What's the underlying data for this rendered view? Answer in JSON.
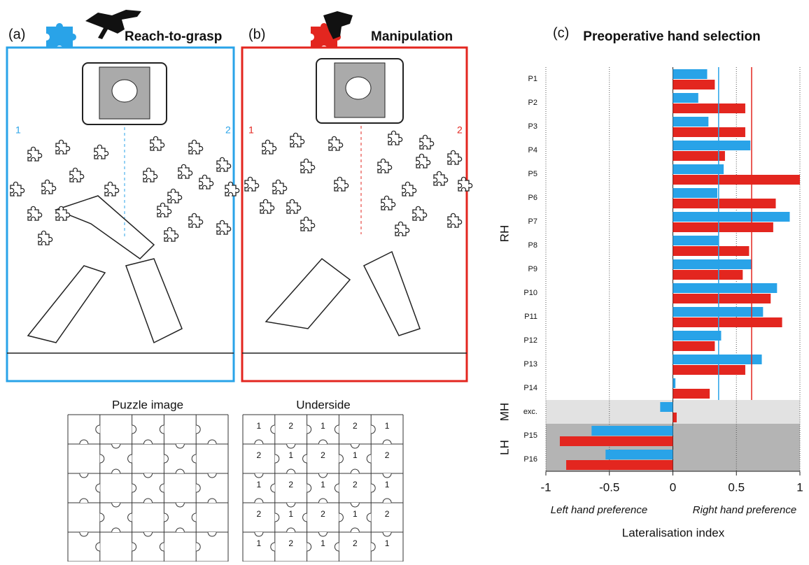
{
  "panels": {
    "a": {
      "label": "(a)",
      "left": "1",
      "right": "2"
    },
    "b": {
      "label": "(b)",
      "left": "1",
      "right": "2"
    }
  },
  "puzzle": {
    "image_title": "Puzzle image",
    "underside_title": "Underside",
    "underside_numbers": [
      [
        "1",
        "2",
        "1",
        "2",
        "1"
      ],
      [
        "2",
        "1",
        "2",
        "1",
        "2"
      ],
      [
        "1",
        "2",
        "1",
        "2",
        "1"
      ],
      [
        "2",
        "1",
        "2",
        "1",
        "2"
      ],
      [
        "1",
        "2",
        "1",
        "2",
        "1"
      ]
    ]
  },
  "chart_data": {
    "type": "bar",
    "orientation": "horizontal",
    "panel_label": "(c)",
    "title": "Preoperative hand selection",
    "categories": [
      "P1",
      "P2",
      "P3",
      "P4",
      "P5",
      "P6",
      "P7",
      "P8",
      "P9",
      "P10",
      "P11",
      "P12",
      "P13",
      "P14",
      "exc.",
      "P15",
      "P16"
    ],
    "groups": [
      {
        "label": "RH",
        "count": 14,
        "color": "#ffffff"
      },
      {
        "label": "MH",
        "count": 1,
        "color": "#e2e2e2"
      },
      {
        "label": "LH",
        "count": 2,
        "color": "#b4b4b4"
      }
    ],
    "series": [
      {
        "name": "Reach-to-grasp",
        "color": "#29a3e8",
        "mean": 0.36,
        "values": [
          0.27,
          0.2,
          0.28,
          0.61,
          0.4,
          0.35,
          0.92,
          0.36,
          0.62,
          0.82,
          0.71,
          0.38,
          0.7,
          0.02,
          -0.1,
          -0.64,
          -0.53
        ]
      },
      {
        "name": "Manipulation",
        "color": "#e3261f",
        "mean": 0.62,
        "values": [
          0.33,
          0.57,
          0.57,
          0.41,
          1.0,
          0.81,
          0.79,
          0.6,
          0.55,
          0.77,
          0.86,
          0.33,
          0.57,
          0.29,
          0.03,
          -0.89,
          -0.84
        ]
      }
    ],
    "xlim": [
      -1,
      1
    ],
    "xticks": [
      -1,
      -0.5,
      0,
      0.5,
      1
    ],
    "grid": true,
    "xlabel": "Lateralisation index",
    "annotations": [
      "Left hand preference",
      "Right hand preference"
    ]
  }
}
